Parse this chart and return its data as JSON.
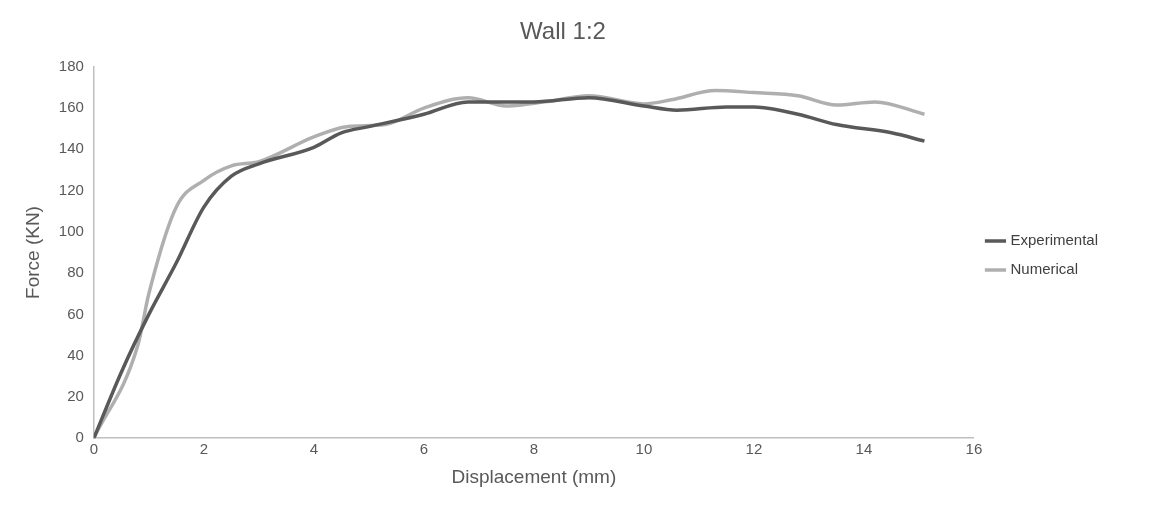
{
  "chart_data": {
    "type": "line",
    "title": "Wall 1:2",
    "xlabel": "Displacement (mm)",
    "ylabel": "Force (KN)",
    "xlim": [
      0,
      16
    ],
    "xticks": [
      0,
      2,
      4,
      6,
      8,
      10,
      12,
      14,
      16
    ],
    "ylim": [
      0,
      180
    ],
    "yticks": [
      0,
      20,
      40,
      60,
      80,
      100,
      120,
      140,
      160,
      180
    ],
    "grid": false,
    "legend": "right",
    "marker": "none",
    "line_style": "solid",
    "series": [
      {
        "name": "Experimental",
        "color": "#595959",
        "x": [
          0,
          0.5,
          1,
          1.5,
          2,
          2.5,
          3,
          4,
          4.5,
          5,
          6,
          6.8,
          8,
          9,
          10,
          10.6,
          11.5,
          12,
          12.8,
          13.5,
          14.5,
          15.1
        ],
        "values": [
          0,
          32,
          60,
          85,
          112,
          127,
          133,
          141,
          148,
          151,
          157,
          163,
          163,
          165,
          161,
          159,
          160.5,
          160.5,
          157,
          152,
          148,
          144
        ]
      },
      {
        "name": "Numerical",
        "color": "#afafaf",
        "x": [
          0,
          0.8,
          1,
          1.5,
          2,
          2.5,
          3,
          4,
          4.6,
          5.3,
          6,
          6.8,
          7.5,
          8.2,
          9,
          10,
          10.5,
          11.3,
          12,
          12.8,
          13.5,
          14.2,
          15.1
        ],
        "values": [
          0,
          45,
          70,
          112,
          125,
          132,
          134,
          146,
          151,
          152,
          160,
          165,
          161,
          163,
          166,
          162,
          164,
          168.5,
          167.5,
          166,
          161.5,
          163,
          157
        ]
      }
    ]
  }
}
